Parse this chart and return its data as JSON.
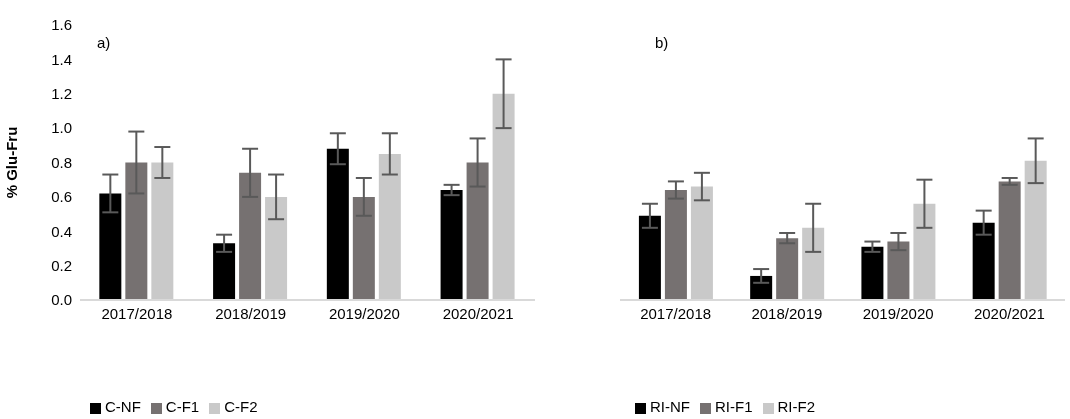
{
  "chart_data": [
    {
      "type": "bar",
      "ylabel": "% Glu-Fru",
      "annotations": [
        "a)"
      ],
      "categories": [
        "2017/2018",
        "2018/2019",
        "2019/2020",
        "2020/2021"
      ],
      "series": [
        {
          "name": "C-NF",
          "color": "#000000",
          "values": [
            0.62,
            0.33,
            0.88,
            0.64
          ],
          "errors": [
            0.11,
            0.05,
            0.09,
            0.03
          ]
        },
        {
          "name": "C-F1",
          "color": "#767171",
          "values": [
            0.8,
            0.74,
            0.6,
            0.8
          ],
          "errors": [
            0.18,
            0.14,
            0.11,
            0.14
          ]
        },
        {
          "name": "C-F2",
          "color": "#c9c9c9",
          "values": [
            0.8,
            0.6,
            0.85,
            1.2
          ],
          "errors": [
            0.09,
            0.13,
            0.12,
            0.2
          ]
        }
      ],
      "ylim": [
        0,
        1.6
      ],
      "yticks": [
        {
          "value": 0,
          "label": "0.0"
        },
        0.2,
        0.4,
        0.6,
        0.8,
        {
          "value": 1,
          "label": "1.0"
        },
        1.2,
        1.4,
        1.6
      ],
      "legend": "bottom"
    },
    {
      "type": "bar",
      "annotations": [
        "b)"
      ],
      "categories": [
        "2017/2018",
        "2018/2019",
        "2019/2020",
        "2020/2021"
      ],
      "series": [
        {
          "name": "RI-NF",
          "color": "#000000",
          "values": [
            0.49,
            0.14,
            0.31,
            0.45
          ],
          "errors": [
            0.07,
            0.04,
            0.03,
            0.07
          ]
        },
        {
          "name": "RI-F1",
          "color": "#767171",
          "values": [
            0.64,
            0.36,
            0.34,
            0.69
          ],
          "errors": [
            0.05,
            0.03,
            0.05,
            0.02
          ]
        },
        {
          "name": "RI-F2",
          "color": "#c9c9c9",
          "values": [
            0.66,
            0.42,
            0.56,
            0.81
          ],
          "errors": [
            0.08,
            0.14,
            0.14,
            0.13
          ]
        }
      ],
      "ylim": [
        0,
        1.6
      ],
      "tick_labels": "x",
      "legend": "bottom"
    }
  ]
}
